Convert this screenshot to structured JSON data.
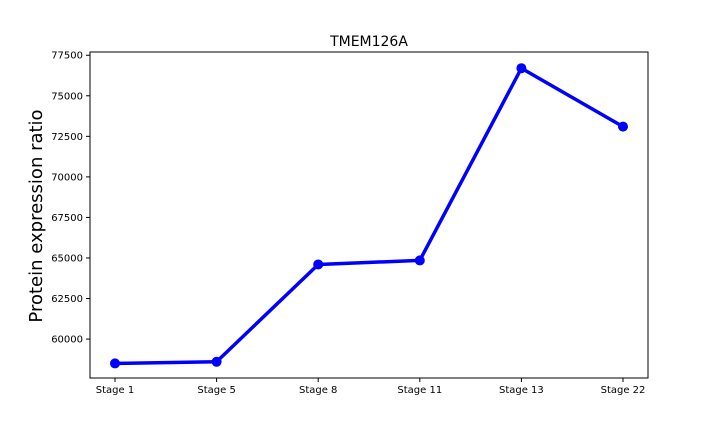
{
  "chart_data": {
    "type": "line",
    "title": "TMEM126A",
    "xlabel": "",
    "ylabel": "Protein expression ratio",
    "categories": [
      "Stage 1",
      "Stage 5",
      "Stage 8",
      "Stage 11",
      "Stage 13",
      "Stage 22"
    ],
    "series": [
      {
        "values": [
          58500,
          58600,
          64600,
          64850,
          76700,
          73100
        ]
      }
    ],
    "ylim": [
      57600,
      77700
    ],
    "yticks": [
      60000,
      62500,
      65000,
      67500,
      70000,
      72500,
      75000,
      77500
    ],
    "ytick_labels": [
      "60000",
      "62500",
      "65000",
      "67500",
      "70000",
      "72500",
      "75000",
      "77500"
    ],
    "grid": false,
    "legend": "none",
    "line_color": "#0000ff"
  }
}
